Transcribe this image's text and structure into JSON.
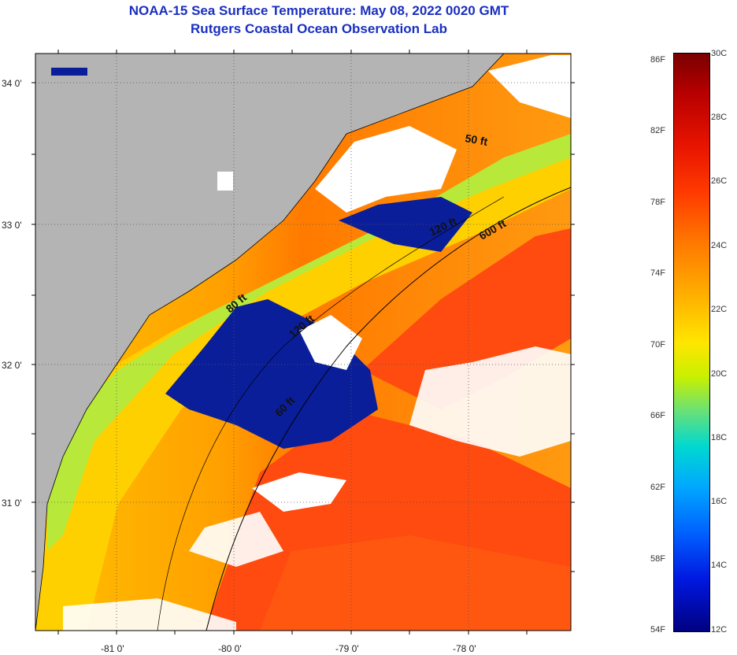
{
  "title_line1": "NOAA-15 Sea Surface Temperature:  May 08, 2022 0020 GMT",
  "title_line2": "Rutgers Coastal Ocean Observation Lab",
  "axes": {
    "lat_labels": [
      "34 0'",
      "33 0'",
      "32 0'",
      "31 0'"
    ],
    "lon_labels": [
      "-81 0'",
      "-80 0'",
      "-79 0'",
      "-78 0'"
    ]
  },
  "contours": [
    "50 ft",
    "120 ft",
    "600 ft",
    "80 ft",
    "120 ft",
    "60 ft"
  ],
  "colorbar": {
    "fahrenheit": [
      "86F",
      "82F",
      "78F",
      "74F",
      "70F",
      "66F",
      "62F",
      "58F",
      "54F"
    ],
    "celsius": [
      "30C",
      "28C",
      "26C",
      "24C",
      "22C",
      "20C",
      "18C",
      "16C",
      "14C",
      "12C"
    ]
  },
  "colors": {
    "title": "#1a2fc0",
    "land": "#b4b4b4",
    "cloud": "#ffffff",
    "ocean_warm": "#ff4500"
  }
}
